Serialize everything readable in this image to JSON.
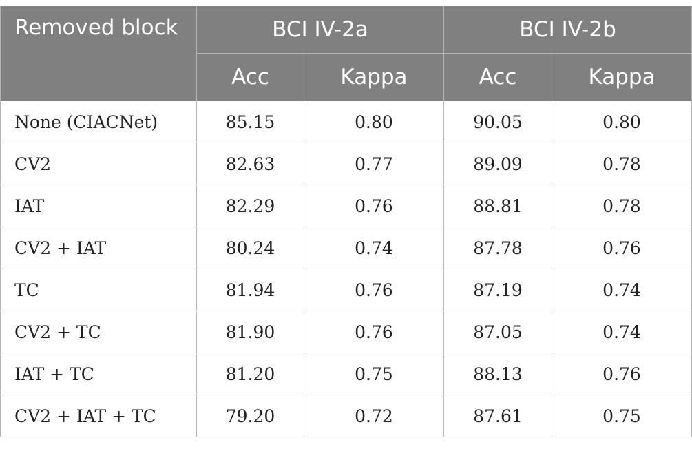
{
  "table": {
    "corner_header": "Removed block",
    "groups": [
      "BCI IV-2a",
      "BCI IV-2b"
    ],
    "subheaders": [
      "Acc",
      "Kappa",
      "Acc",
      "Kappa"
    ],
    "rows": [
      {
        "label": "None (CIACNet)",
        "a_acc": "85.15",
        "a_kappa": "0.80",
        "b_acc": "90.05",
        "b_kappa": "0.80"
      },
      {
        "label": "CV2",
        "a_acc": "82.63",
        "a_kappa": "0.77",
        "b_acc": "89.09",
        "b_kappa": "0.78"
      },
      {
        "label": "IAT",
        "a_acc": "82.29",
        "a_kappa": "0.76",
        "b_acc": "88.81",
        "b_kappa": "0.78"
      },
      {
        "label": "CV2 + IAT",
        "a_acc": "80.24",
        "a_kappa": "0.74",
        "b_acc": "87.78",
        "b_kappa": "0.76"
      },
      {
        "label": "TC",
        "a_acc": "81.94",
        "a_kappa": "0.76",
        "b_acc": "87.19",
        "b_kappa": "0.74"
      },
      {
        "label": "CV2 + TC",
        "a_acc": "81.90",
        "a_kappa": "0.76",
        "b_acc": "87.05",
        "b_kappa": "0.74"
      },
      {
        "label": "IAT + TC",
        "a_acc": "81.20",
        "a_kappa": "0.75",
        "b_acc": "88.13",
        "b_kappa": "0.76"
      },
      {
        "label": "CV2 + IAT + TC",
        "a_acc": "79.20",
        "a_kappa": "0.72",
        "b_acc": "87.61",
        "b_kappa": "0.75"
      }
    ]
  }
}
